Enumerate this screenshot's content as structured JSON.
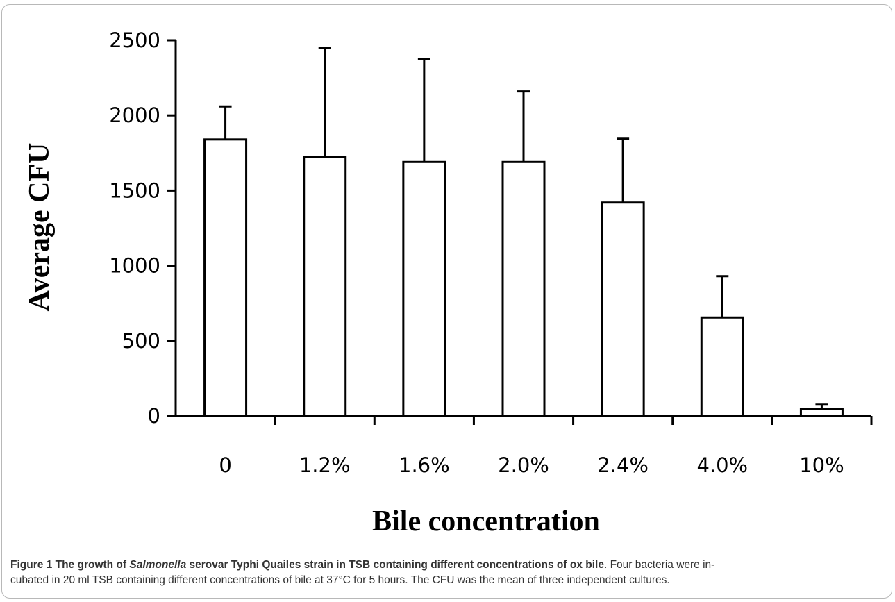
{
  "chart_data": {
    "type": "bar",
    "categories": [
      "0",
      "1.2%",
      "1.6%",
      "2.0%",
      "2.4%",
      "4.0%",
      "10%"
    ],
    "values": [
      1840,
      1725,
      1690,
      1690,
      1420,
      655,
      45
    ],
    "error_upper": [
      2060,
      2450,
      2375,
      2160,
      1845,
      930,
      75
    ],
    "xlabel": "Bile concentration",
    "ylabel": "Average CFU",
    "ylim": [
      0,
      2500
    ],
    "yticks": [
      0,
      500,
      1000,
      1500,
      2000,
      2500
    ],
    "grid": false,
    "bar_fill": "#ffffff",
    "bar_stroke": "#000000"
  },
  "caption": {
    "label": "Figure 1",
    "title_pre": "The growth of ",
    "title_italic": "Salmonella",
    "title_post": " serovar Typhi Quailes strain in TSB containing different concentrations of ox bile",
    "line1_rest": ". Four bacteria were in-",
    "line2": "cubated in 20 ml TSB containing different concentrations of bile at 37°C for 5 hours. The CFU was the mean of three independent cultures."
  }
}
